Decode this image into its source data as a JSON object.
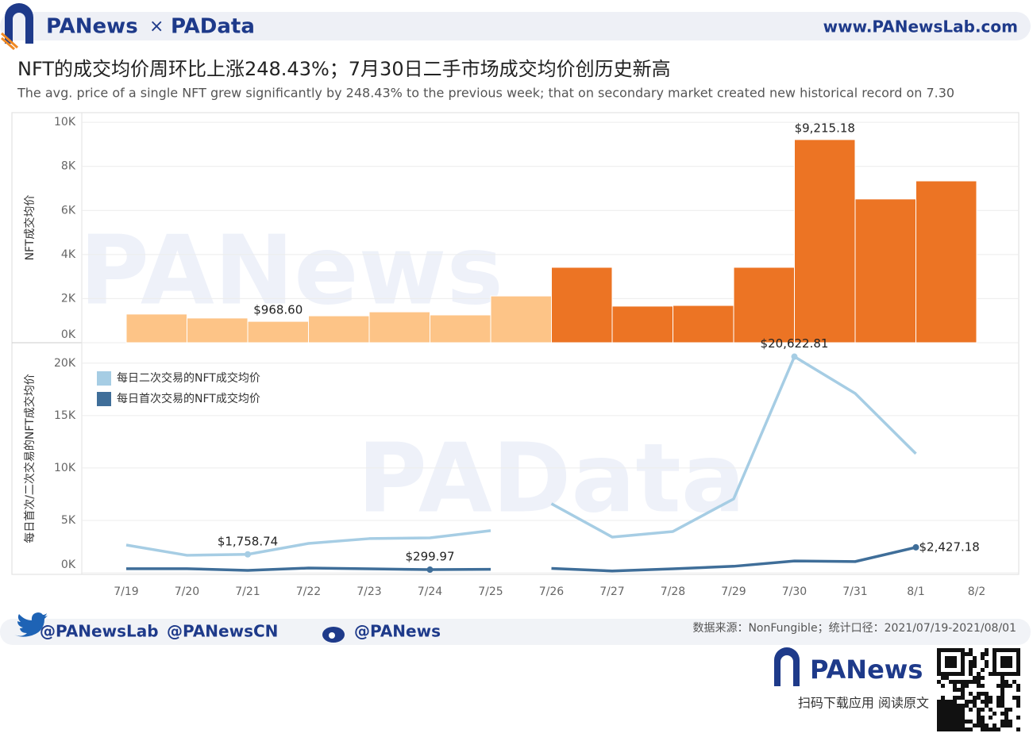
{
  "header": {
    "logo_left": "PANews",
    "times": "×",
    "logo_right": "PAData",
    "url": "www.PANewsLab.com"
  },
  "title": "NFT的成交均价周环比上涨248.43%；7月30日二手市场成交均价创历史新高",
  "subtitle": "The avg. price of a single NFT grew significantly by 248.43% to the previous week; that on secondary market created new historical record on 7.30",
  "watermarks": [
    "PANews",
    "PAData"
  ],
  "chart_data": [
    {
      "type": "bar",
      "ylabel": "NFT成交均价",
      "ylim": [
        0,
        10400
      ],
      "yticks": [
        {
          "value": 0,
          "label": "0K"
        },
        {
          "value": 2000,
          "label": "2K"
        },
        {
          "value": 4000,
          "label": "4K"
        },
        {
          "value": 6000,
          "label": "6K"
        },
        {
          "value": 8000,
          "label": "8K"
        },
        {
          "value": 10000,
          "label": "10K"
        }
      ],
      "grid": true,
      "series": [
        {
          "color": "#fdc487",
          "values": [
            1300,
            1120,
            968.6,
            1220,
            1400,
            1260,
            2120
          ],
          "value_labels": [
            null,
            null,
            "$968.60",
            null,
            null,
            null,
            null
          ]
        },
        {
          "color": "#ec7424",
          "values": [
            3420,
            1660,
            1690,
            3420,
            9215.18,
            6520,
            7340
          ],
          "value_labels": [
            null,
            null,
            null,
            null,
            "$9,215.18",
            null,
            null
          ]
        }
      ]
    },
    {
      "type": "line",
      "ylabel": "每日首次/二次交易的NFT成交均价",
      "categories": [
        "7/19",
        "7/20",
        "7/21",
        "7/22",
        "7/23",
        "7/24",
        "7/25",
        "7/26",
        "7/27",
        "7/28",
        "7/29",
        "7/30",
        "7/31",
        "8/1",
        "8/2"
      ],
      "ylim": [
        0,
        21800
      ],
      "yticks": [
        {
          "value": 0,
          "label": "0K"
        },
        {
          "value": 5000,
          "label": "5K"
        },
        {
          "value": 10000,
          "label": "10K"
        },
        {
          "value": 15000,
          "label": "15K"
        },
        {
          "value": 20000,
          "label": "20K"
        }
      ],
      "grid": true,
      "legend": "upper left",
      "series": [
        {
          "name": "每日二次交易的NFT成交均价",
          "color": "#a6cde4",
          "values": [
            [
              2650,
              1670,
              1758.74,
              2800,
              3260,
              3330,
              4020
            ],
            [
              6590,
              3410,
              3940,
              7050,
              20622.81,
              17120,
              11360
            ]
          ],
          "value_labels": [
            [
              null,
              null,
              "$1,758.74",
              null,
              null,
              null,
              null
            ],
            [
              null,
              null,
              null,
              null,
              "$20,622.81",
              null,
              null
            ]
          ]
        },
        {
          "name": "每日首次交易的NFT成交均价",
          "color": "#3f6e99",
          "values": [
            [
              390,
              390,
              230,
              450,
              380,
              299.97,
              330
            ],
            [
              420,
              170,
              380,
              620,
              1130,
              1070,
              2427.18
            ]
          ],
          "value_labels": [
            [
              null,
              null,
              null,
              null,
              null,
              "$299.97",
              null
            ],
            [
              null,
              null,
              null,
              null,
              null,
              null,
              "$2,427.18"
            ]
          ]
        }
      ]
    }
  ],
  "footer": {
    "twitter": [
      "@PANewsLab",
      "@PANewsCN"
    ],
    "weibo": "@PANews",
    "source": "数据来源：NonFungible；统计口径：2021/07/19-2021/08/01",
    "brand": "PANews",
    "cta": "扫码下载应用  阅读原文"
  }
}
